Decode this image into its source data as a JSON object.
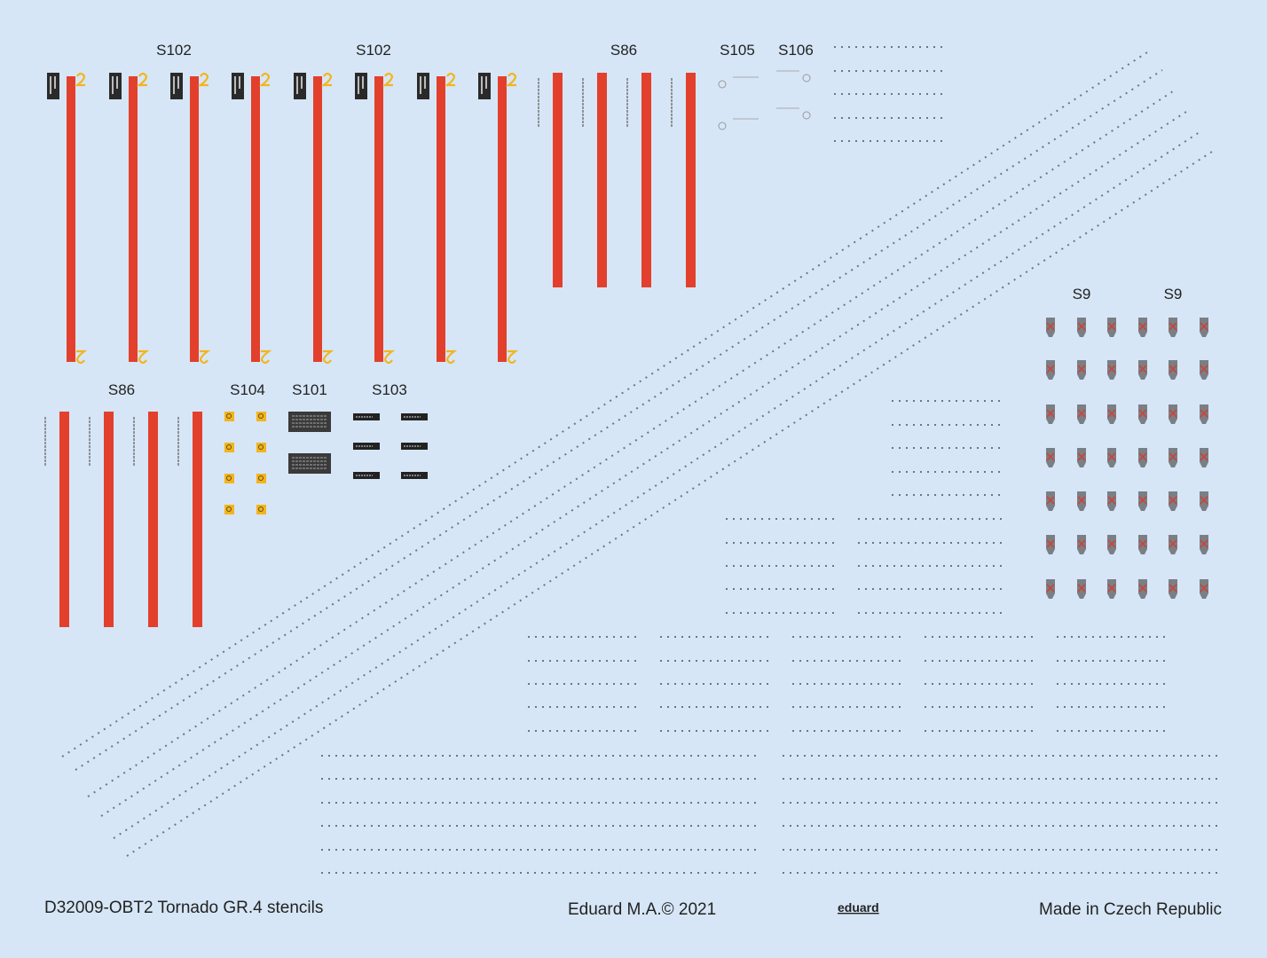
{
  "labels": [
    "S102",
    "S102",
    "S86",
    "S105",
    "S106",
    "S9",
    "S9",
    "S86",
    "S104",
    "S101",
    "S103"
  ],
  "footer": {
    "code": "D32009-OBT2 Tornado GR.4 stencils",
    "copyright": "Eduard M.A.© 2021",
    "brand": "eduard",
    "origin": "Made in Czech Republic"
  }
}
